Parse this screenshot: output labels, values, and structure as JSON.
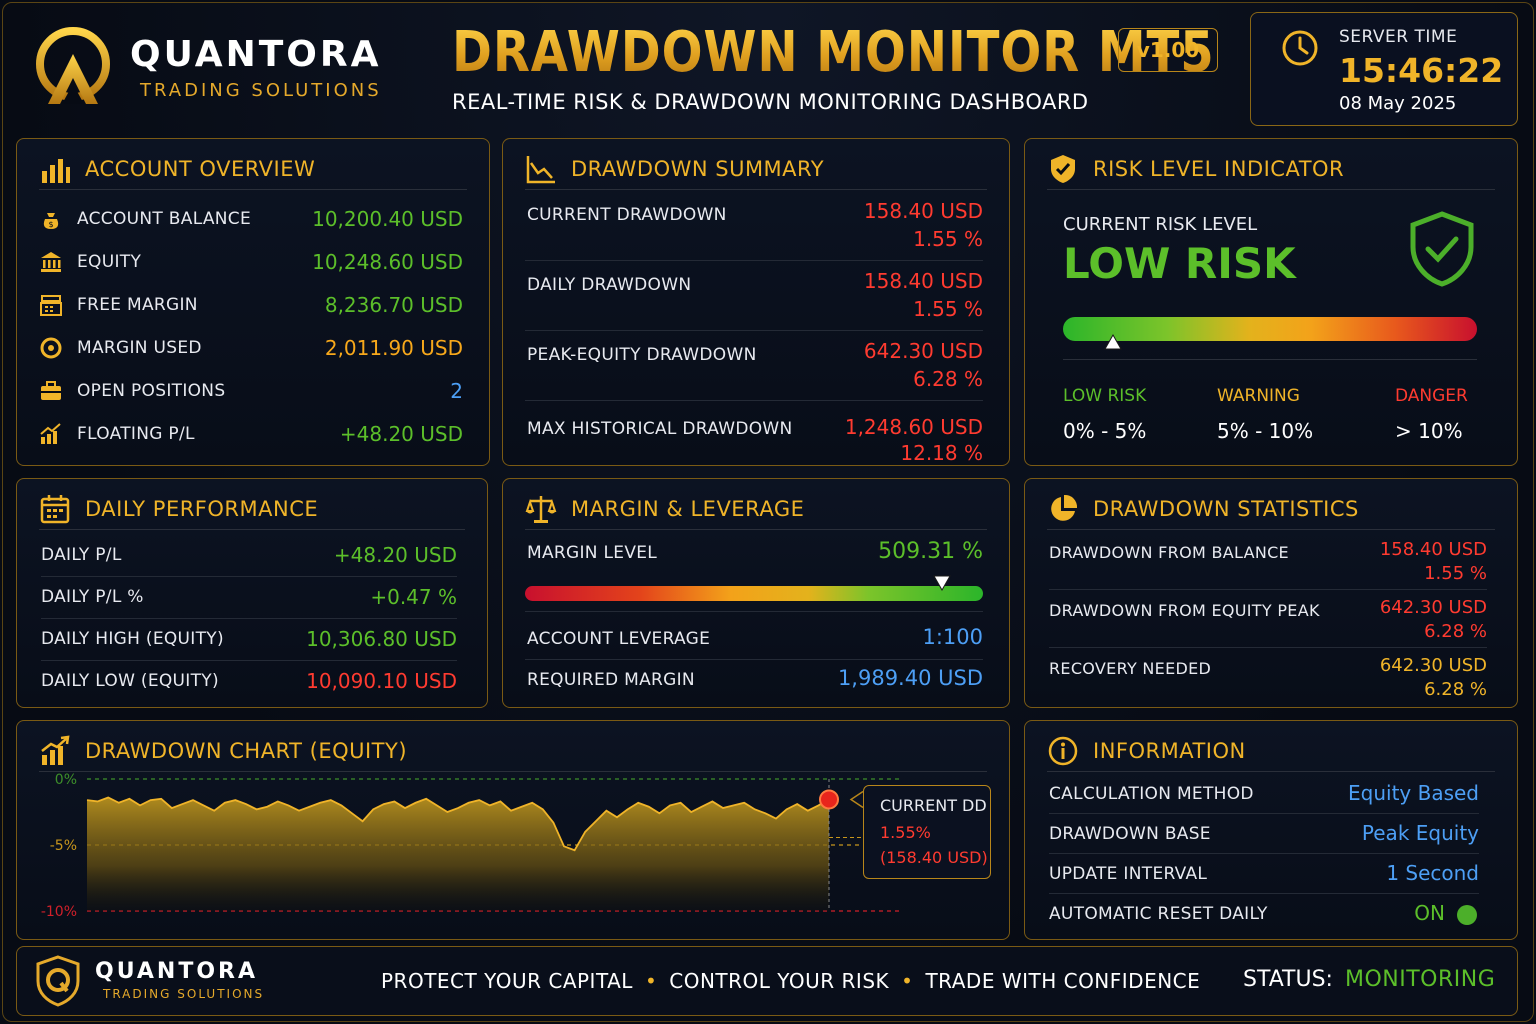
{
  "brand": {
    "name": "QUANTORA",
    "sub": "TRADING SOLUTIONS"
  },
  "header": {
    "title": "DRAWDOWN MONITOR MT5",
    "subtitle": "REAL-TIME RISK & DRAWDOWN MONITORING DASHBOARD",
    "version": "v1.00"
  },
  "server_time": {
    "label": "SERVER TIME",
    "time": "15:46:22",
    "date": "08 May 2025"
  },
  "account_overview": {
    "title": "ACCOUNT OVERVIEW",
    "rows": [
      {
        "label": "ACCOUNT BALANCE",
        "value": "10,200.40 USD",
        "color": "#5cbf2a",
        "icon": "money-bag-icon"
      },
      {
        "label": "EQUITY",
        "value": "10,248.60 USD",
        "color": "#5cbf2a",
        "icon": "bank-icon"
      },
      {
        "label": "FREE MARGIN",
        "value": "8,236.70 USD",
        "color": "#5cbf2a",
        "icon": "cash-register-icon"
      },
      {
        "label": "MARGIN USED",
        "value": "2,011.90 USD",
        "color": "#f7a81b",
        "icon": "coin-icon"
      },
      {
        "label": "OPEN POSITIONS",
        "value": "2",
        "color": "#4d9ff5",
        "icon": "briefcase-icon"
      },
      {
        "label": "FLOATING P/L",
        "value": "+48.20 USD",
        "color": "#5cbf2a",
        "icon": "growth-chart-icon"
      }
    ]
  },
  "drawdown_summary": {
    "title": "DRAWDOWN SUMMARY",
    "rows": [
      {
        "label": "CURRENT DRAWDOWN",
        "usd": "158.40 USD",
        "pct": "1.55 %"
      },
      {
        "label": "DAILY DRAWDOWN",
        "usd": "158.40 USD",
        "pct": "1.55 %"
      },
      {
        "label": "PEAK-EQUITY DRAWDOWN",
        "usd": "642.30 USD",
        "pct": "6.28 %"
      },
      {
        "label": "MAX HISTORICAL DRAWDOWN",
        "usd": "1,248.60 USD",
        "pct": "12.18 %"
      }
    ]
  },
  "risk_level": {
    "title": "RISK LEVEL INDICATOR",
    "label": "CURRENT RISK LEVEL",
    "value": "LOW RISK",
    "marker_pct": 0.12,
    "levels": [
      {
        "name": "LOW RISK",
        "range": "0% - 5%",
        "color": "#5cbf2a"
      },
      {
        "name": "WARNING",
        "range": "5% - 10%",
        "color": "#f0b429"
      },
      {
        "name": "DANGER",
        "range": "> 10%",
        "color": "#ff3b30"
      }
    ]
  },
  "daily_performance": {
    "title": "DAILY PERFORMANCE",
    "rows": [
      {
        "label": "DAILY P/L",
        "value": "+48.20 USD",
        "color": "#5cbf2a"
      },
      {
        "label": "DAILY P/L %",
        "value": "+0.47 %",
        "color": "#5cbf2a"
      },
      {
        "label": "DAILY HIGH (EQUITY)",
        "value": "10,306.80 USD",
        "color": "#5cbf2a"
      },
      {
        "label": "DAILY LOW (EQUITY)",
        "value": "10,090.10 USD",
        "color": "#ff3b30"
      }
    ]
  },
  "margin_leverage": {
    "title": "MARGIN & LEVERAGE",
    "margin_level_label": "MARGIN LEVEL",
    "margin_level_value": "509.31 %",
    "marker_pct": 0.91,
    "leverage_label": "ACCOUNT LEVERAGE",
    "leverage_value": "1:100",
    "required_label": "REQUIRED MARGIN",
    "required_value": "1,989.40 USD"
  },
  "drawdown_statistics": {
    "title": "DRAWDOWN STATISTICS",
    "rows": [
      {
        "label": "DRAWDOWN FROM BALANCE",
        "usd": "158.40 USD",
        "pct": "1.55 %",
        "color": "#ff3b30"
      },
      {
        "label": "DRAWDOWN FROM EQUITY PEAK",
        "usd": "642.30 USD",
        "pct": "6.28 %",
        "color": "#ff3b30"
      },
      {
        "label": "RECOVERY NEEDED",
        "usd": "642.30 USD",
        "pct": "6.28 %",
        "color": "#f0b429"
      }
    ]
  },
  "drawdown_chart": {
    "title": "DRAWDOWN CHART (EQUITY)",
    "callout_label": "CURRENT DD",
    "callout_pct": "1.55%",
    "callout_usd": "(158.40 USD)"
  },
  "chart_data": {
    "type": "area",
    "title": "DRAWDOWN CHART (EQUITY)",
    "ylim": [
      -10,
      0
    ],
    "yticks": [
      "0%",
      "-5%",
      "-10%"
    ],
    "ytick_values": [
      0,
      -5,
      -10
    ],
    "x": [
      0,
      1,
      2,
      3,
      4,
      5,
      6,
      7,
      8,
      9,
      10,
      11,
      12,
      13,
      14,
      15,
      16,
      17,
      18,
      19,
      20,
      21,
      22,
      23,
      24,
      25,
      26,
      27,
      28,
      29,
      30,
      31,
      32,
      33,
      34,
      35,
      36,
      37,
      38,
      39,
      40,
      41,
      42,
      43,
      44,
      45,
      46,
      47,
      48,
      49,
      50,
      51,
      52,
      53,
      54,
      55,
      56,
      57,
      58,
      59,
      60,
      61,
      62,
      63,
      64,
      65,
      66,
      67,
      68,
      69,
      70
    ],
    "values": [
      -1.6,
      -1.7,
      -1.4,
      -1.8,
      -1.5,
      -2.0,
      -1.6,
      -1.5,
      -2.2,
      -1.9,
      -1.6,
      -2.0,
      -2.4,
      -1.8,
      -1.6,
      -1.9,
      -2.3,
      -2.1,
      -1.7,
      -2.0,
      -2.4,
      -2.1,
      -1.8,
      -1.6,
      -2.0,
      -2.6,
      -3.2,
      -2.3,
      -1.9,
      -1.7,
      -2.2,
      -1.8,
      -1.5,
      -2.0,
      -2.5,
      -2.2,
      -1.8,
      -1.6,
      -2.0,
      -1.7,
      -2.4,
      -2.1,
      -1.8,
      -2.3,
      -3.3,
      -5.1,
      -5.4,
      -4.0,
      -3.2,
      -2.4,
      -2.9,
      -2.3,
      -1.8,
      -2.1,
      -2.6,
      -2.0,
      -1.8,
      -2.5,
      -2.1,
      -1.7,
      -2.2,
      -2.0,
      -1.8,
      -2.3,
      -2.6,
      -3.0,
      -2.3,
      -1.9,
      -2.4,
      -2.0,
      -1.55
    ]
  },
  "information": {
    "title": "INFORMATION",
    "rows": [
      {
        "label": "CALCULATION METHOD",
        "value": "Equity Based"
      },
      {
        "label": "DRAWDOWN BASE",
        "value": "Peak Equity"
      },
      {
        "label": "UPDATE INTERVAL",
        "value": "1 Second"
      },
      {
        "label": "AUTOMATIC RESET DAILY",
        "value": "ON"
      }
    ]
  },
  "footer": {
    "tagline": [
      "PROTECT YOUR CAPITAL",
      "CONTROL YOUR RISK",
      "TRADE WITH CONFIDENCE"
    ],
    "status_label": "STATUS:",
    "status_value": "MONITORING"
  }
}
